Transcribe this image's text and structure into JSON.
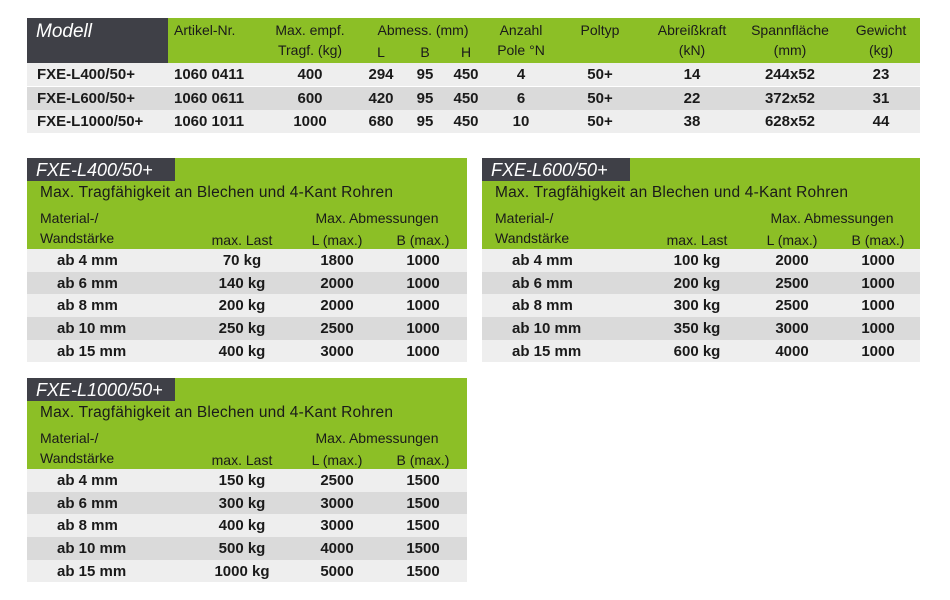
{
  "main_table": {
    "headers": {
      "modell": "Modell",
      "artikel": "Artikel-Nr.",
      "tragf1": "Max. empf.",
      "tragf2": "Tragf. (kg)",
      "abmess": "Abmess. (mm)",
      "L": "L",
      "B": "B",
      "H": "H",
      "pole1": "Anzahl",
      "pole2": "Pole °N",
      "poltyp": "Poltyp",
      "kraft1": "Abreißkraft",
      "kraft2": "(kN)",
      "spann1": "Spannfläche",
      "spann2": "(mm)",
      "gew1": "Gewicht",
      "gew2": "(kg)"
    },
    "rows": [
      [
        "FXE-L400/50+",
        "1060 0411",
        "400",
        "294",
        "95",
        "450",
        "4",
        "50+",
        "14",
        "244x52",
        "23"
      ],
      [
        "FXE-L600/50+",
        "1060 0611",
        "600",
        "420",
        "95",
        "450",
        "6",
        "50+",
        "22",
        "372x52",
        "31"
      ],
      [
        "FXE-L1000/50+",
        "1060 1011",
        "1000",
        "680",
        "95",
        "450",
        "10",
        "50+",
        "38",
        "628x52",
        "44"
      ]
    ]
  },
  "sub_tables": [
    {
      "title": "FXE-L400/50+",
      "subtitle": "Max. Tragfähigkeit an Blechen und 4-Kant Rohren",
      "h_mat1": "Material-/",
      "h_mat2": "Wandstärke",
      "h_last": "max. Last",
      "h_abm": "Max. Abmessungen",
      "h_L": "L (max.)",
      "h_B": "B (max.)",
      "rows": [
        [
          "ab 4 mm",
          "70 kg",
          "1800",
          "1000"
        ],
        [
          "ab 6 mm",
          "140 kg",
          "2000",
          "1000"
        ],
        [
          "ab 8 mm",
          "200 kg",
          "2000",
          "1000"
        ],
        [
          "ab 10 mm",
          "250 kg",
          "2500",
          "1000"
        ],
        [
          "ab 15 mm",
          "400 kg",
          "3000",
          "1000"
        ]
      ]
    },
    {
      "title": "FXE-L600/50+",
      "subtitle": "Max. Tragfähigkeit an Blechen und 4-Kant Rohren",
      "h_mat1": "Material-/",
      "h_mat2": "Wandstärke",
      "h_last": "max. Last",
      "h_abm": "Max. Abmessungen",
      "h_L": "L (max.)",
      "h_B": "B (max.)",
      "rows": [
        [
          "ab 4 mm",
          "100 kg",
          "2000",
          "1000"
        ],
        [
          "ab 6 mm",
          "200 kg",
          "2500",
          "1000"
        ],
        [
          "ab 8 mm",
          "300 kg",
          "2500",
          "1000"
        ],
        [
          "ab 10 mm",
          "350 kg",
          "3000",
          "1000"
        ],
        [
          "ab 15 mm",
          "600 kg",
          "4000",
          "1000"
        ]
      ]
    },
    {
      "title": "FXE-L1000/50+",
      "subtitle": "Max. Tragfähigkeit an Blechen und 4-Kant Rohren",
      "h_mat1": "Material-/",
      "h_mat2": "Wandstärke",
      "h_last": "max. Last",
      "h_abm": "Max. Abmessungen",
      "h_L": "L (max.)",
      "h_B": "B (max.)",
      "rows": [
        [
          "ab 4 mm",
          "150 kg",
          "2500",
          "1500"
        ],
        [
          "ab 6 mm",
          "300 kg",
          "3000",
          "1500"
        ],
        [
          "ab 8 mm",
          "400 kg",
          "3000",
          "1500"
        ],
        [
          "ab 10 mm",
          "500 kg",
          "4000",
          "1500"
        ],
        [
          "ab 15 mm",
          "1000 kg",
          "5000",
          "1500"
        ]
      ]
    }
  ],
  "colors": {
    "green": "#8cbf26",
    "dark": "#3f4047",
    "row_light": "#eeeeee",
    "row_dark": "#dadada"
  }
}
